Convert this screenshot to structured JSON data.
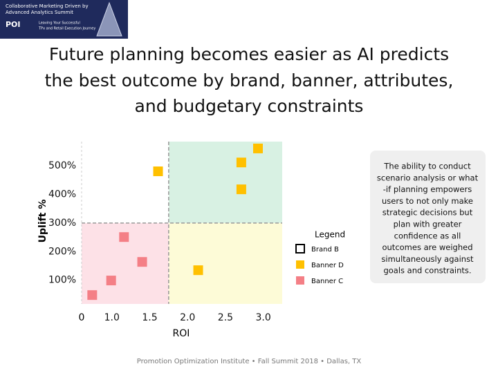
{
  "header": {
    "logo_lines": [
      "Collaborative Marketing Driven by",
      "Advanced Analytics Summit"
    ],
    "logo_mark": "POI",
    "logo_sub": [
      "Leaving Your Successful",
      "TPx and Retail Execution Journey"
    ]
  },
  "title_lines": [
    "Future planning becomes easier as AI predicts",
    "the best outcome by brand, banner, attributes,",
    "and budgetary constraints"
  ],
  "chart_data": {
    "type": "scatter",
    "x_label": "ROI",
    "y_label": "Uplift %",
    "origin_label": "0",
    "xlim": [
      0.6,
      3.25
    ],
    "ylim": [
      17,
      585
    ],
    "xticks": [
      {
        "value": 1,
        "label": "1.0"
      },
      1.5,
      {
        "value": 2,
        "label": "2.0"
      },
      2.5,
      {
        "value": 3,
        "label": "3.0"
      }
    ],
    "yticks": [
      {
        "value": 100,
        "label": "100%"
      },
      {
        "value": 200,
        "label": "200%"
      },
      {
        "value": 300,
        "label": "300%"
      },
      {
        "value": 400,
        "label": "400%"
      },
      {
        "value": 500,
        "label": "500%"
      }
    ],
    "dividers": {
      "x": 1.75,
      "y": 300
    },
    "quadrant_colors": {
      "top_left": "#ffffff",
      "top_right": "#d8f1e3",
      "bottom_left": "#fde1e7",
      "bottom_right": "#fdfbd7"
    },
    "legend_title": "Legend",
    "series": [
      {
        "name": "Brand B",
        "color": "#ffffff",
        "x": [],
        "values": []
      },
      {
        "name": "Banner D",
        "color": "#ffc000",
        "x": [
          2.93,
          2.71,
          1.61,
          2.71,
          2.14
        ],
        "values": [
          561,
          512,
          481,
          418,
          135
        ]
      },
      {
        "name": "Banner C",
        "color": "#f47f86",
        "x": [
          1.16,
          1.4,
          0.99,
          0.74
        ],
        "values": [
          251,
          164,
          99,
          48
        ]
      }
    ]
  },
  "side_note": [
    "The ability to conduct",
    "scenario analysis or what",
    "-if planning empowers",
    "users to not only make",
    "strategic decisions but",
    "plan with greater",
    "confidence as all",
    "outcomes are weighed",
    "simultaneously against",
    "goals and constraints."
  ],
  "footer": "Promotion Optimization Institute • Fall Summit 2018 • Dallas, TX"
}
